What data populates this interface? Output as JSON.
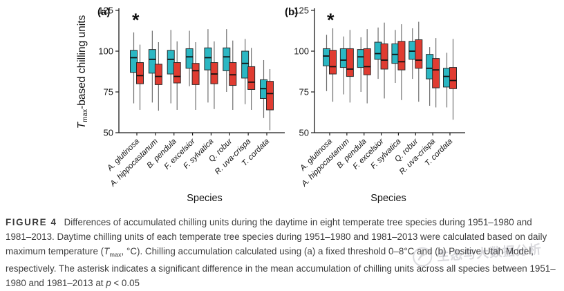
{
  "chart_data": [
    {
      "type": "boxplot",
      "panel_label": "(a)",
      "significance_marker": "*",
      "xlabel": "Species",
      "ylabel": {
        "italic": "T",
        "subscript": "max",
        "rest": "-based chilling units"
      },
      "ylim": [
        50,
        125
      ],
      "yticks": [
        50,
        75,
        100,
        125
      ],
      "grid": false,
      "legend": false,
      "categories": [
        "A. glutinosa",
        "A. hippocastanum",
        "B. pendula",
        "F. excelsior",
        "F. sylvatica",
        "Q. robur",
        "R. uva-crispa",
        "T. cordata"
      ],
      "box_format": [
        "whisker_low",
        "q1",
        "median",
        "q3",
        "whisker_high"
      ],
      "series": [
        {
          "name": "1951–1980",
          "color": "#2bb7c3",
          "boxes": [
            [
              68,
              87,
              96,
              100.5,
              111.5
            ],
            [
              68.5,
              86.5,
              95,
              101,
              112.5
            ],
            [
              68,
              86,
              95,
              100.5,
              113
            ],
            [
              78.5,
              89.5,
              96.5,
              101.5,
              112.5
            ],
            [
              68.5,
              88.5,
              96,
              102,
              113.5
            ],
            [
              75,
              88,
              96.5,
              102,
              113.5
            ],
            [
              67.5,
              83.5,
              92.5,
              100,
              107.5
            ],
            [
              59,
              71,
              77,
              82.5,
              94.5
            ]
          ]
        },
        {
          "name": "1981–2013",
          "color": "#e03c31",
          "boxes": [
            [
              64,
              80,
              85,
              93,
              104
            ],
            [
              63.5,
              79.5,
              84.5,
              92,
              105.5
            ],
            [
              64,
              80.5,
              84.5,
              93,
              106
            ],
            [
              64,
              79.5,
              88,
              92.5,
              105.5
            ],
            [
              64.5,
              80,
              86,
              93,
              106
            ],
            [
              64,
              79,
              85.5,
              93,
              106.5
            ],
            [
              64,
              76.5,
              81,
              90.5,
              102
            ],
            [
              51.5,
              64,
              74,
              81.5,
              89
            ]
          ]
        }
      ]
    },
    {
      "type": "boxplot",
      "panel_label": "(b)",
      "significance_marker": "*",
      "xlabel": "Species",
      "ylabel": null,
      "ylim": [
        50,
        125
      ],
      "yticks": [
        50,
        75,
        100,
        125
      ],
      "grid": false,
      "legend": true,
      "legend_position": "top",
      "categories": [
        "A. glutinosa",
        "A. hippocastanum",
        "B. pendula",
        "F. excelsior",
        "F. sylvatica",
        "Q. robur",
        "R. uva-crispa",
        "T. cordata"
      ],
      "box_format": [
        "whisker_low",
        "q1",
        "median",
        "q3",
        "whisker_high"
      ],
      "series": [
        {
          "name": "1951–1980",
          "color": "#2bb7c3",
          "boxes": [
            [
              75.5,
              91,
              97,
              101.5,
              110
            ],
            [
              73.5,
              90,
              94.5,
              101.5,
              109
            ],
            [
              75,
              90,
              96.5,
              101,
              108.5
            ],
            [
              83,
              95,
              98.5,
              105.5,
              114.5
            ],
            [
              80.5,
              92.5,
              98,
              104.5,
              113
            ],
            [
              83,
              95,
              100,
              106,
              114
            ],
            [
              66.5,
              83,
              89.5,
              98,
              102.5
            ],
            [
              65.5,
              78,
              84.5,
              89.5,
              99
            ]
          ]
        },
        {
          "name": "1981–2013",
          "color": "#e03c31",
          "boxes": [
            [
              69,
              86,
              90.5,
              100.5,
              114
            ],
            [
              68.5,
              84.5,
              89,
              101.5,
              113
            ],
            [
              68,
              85.5,
              90.5,
              101.5,
              113.5
            ],
            [
              71,
              89,
              94.5,
              104.5,
              117.5
            ],
            [
              70,
              88.5,
              93.5,
              106,
              116.5
            ],
            [
              69,
              89.5,
              94.5,
              107,
              118
            ],
            [
              65.5,
              77.5,
              88.5,
              95.5,
              108
            ],
            [
              58,
              77,
              82,
              90,
              107.5
            ]
          ]
        }
      ]
    }
  ],
  "caption": {
    "label": "FIGURE 4",
    "body_1": "Differences of accumulated chilling units during the daytime in eight temperate tree species during 1951–1980 and 1981–2013. Daytime chilling units of each temperate tree species during 1951–1980 and 1981–2013 were calculated based on daily maximum temperature (",
    "tmax_t": "T",
    "tmax_sub": "max",
    "body_2": ", °C). Chilling accumulation calculated using (a) a fixed threshold 0–8°C and (b) Positive Utah Model, respectively. The asterisk indicates a significant difference in the mean accumulation of chilling units across all species between 1951–1980 and 1981–2013 at ",
    "p_symbol": "p",
    "p_rest": " < 0.05"
  },
  "watermark": {
    "text": "生态与大数据分析"
  }
}
